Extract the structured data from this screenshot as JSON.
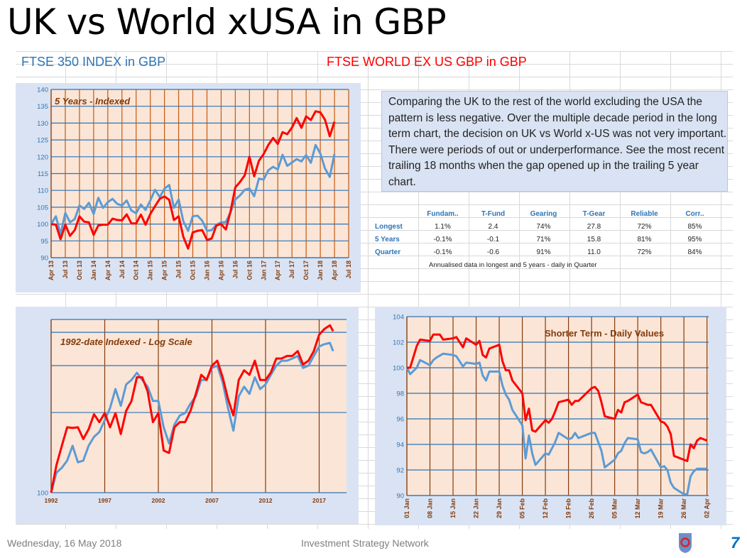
{
  "title": "UK vs World xUSA in GBP",
  "headers": {
    "uk": "FTSE 350 INDEX  in  GBP",
    "world": "FTSE WORLD EX US GBP  in  GBP"
  },
  "note": "Comparing the UK to the rest of the world excluding the USA the pattern is less negative.  Over the multiple decade period in the long term chart, the decision on UK vs World x-US was not very important.  There were periods of out or underperformance.  See the most recent trailing 18 months when the gap opened up in the trailing 5 year chart.",
  "table": {
    "columns": [
      "Fundam..",
      "T-Fund",
      "Gearing",
      "T-Gear",
      "Reliable",
      "Corr.."
    ],
    "rows": [
      {
        "label": "Longest",
        "values": [
          "1.1%",
          "2.4",
          "74%",
          "27.8",
          "72%",
          "85%"
        ]
      },
      {
        "label": "5 Years",
        "values": [
          "-0.1%",
          "-0.1",
          "71%",
          "15.8",
          "81%",
          "95%"
        ]
      },
      {
        "label": "Quarter",
        "values": [
          "-0.1%",
          "-0.6",
          "91%",
          "11.0",
          "72%",
          "84%"
        ]
      }
    ],
    "footnote": "Annualised data in longest and 5 years - daily in Quarter"
  },
  "footer": {
    "date": "Wednesday, 16 May 2018",
    "org": "Investment Strategy Network",
    "page": "7"
  },
  "colors": {
    "uk": "#5b9bd5",
    "world": "#ff0000",
    "plot_bg": "#fbe5d6",
    "panel_bg": "#dae3f3",
    "hgrid": "#2e75b6",
    "vgrid": "#c55a11"
  },
  "chart_data": [
    {
      "type": "line",
      "title": "5 Years - Indexed",
      "x_unit": "months since Apr 2013",
      "ylim": [
        90,
        140
      ],
      "yticks": [
        90,
        95,
        100,
        105,
        110,
        115,
        120,
        125,
        130,
        135,
        140
      ],
      "xtick_labels": [
        "Apr 13",
        "Jul 13",
        "Oct 13",
        "Jan 14",
        "Apr 14",
        "Jul 14",
        "Oct 14",
        "Jan 15",
        "Apr 15",
        "Jul 15",
        "Oct 15",
        "Jan 16",
        "Apr 16",
        "Jul 16",
        "Oct 16",
        "Jan 17",
        "Apr 17",
        "Jul 17",
        "Oct 17",
        "Jan 18",
        "Apr 18",
        "Jul 18"
      ],
      "series": [
        {
          "name": "FTSE 350 INDEX in GBP",
          "color": "#5b9bd5",
          "values": [
            100,
            102.3,
            97,
            103.3,
            100.5,
            101.5,
            105.5,
            104.5,
            106.3,
            103,
            107.8,
            104.8,
            106.5,
            107.5,
            106,
            105.5,
            107,
            104,
            103.2,
            105.8,
            104.2,
            107,
            110.2,
            108,
            110.5,
            111.6,
            104.8,
            107.3,
            100.8,
            98,
            102.3,
            102.5,
            101,
            98,
            98.2,
            99.8,
            100.5,
            100.6,
            103.5,
            107.3,
            108.5,
            110.2,
            110.6,
            108.3,
            113.5,
            113.2,
            116,
            117,
            116.2,
            120.6,
            117.3,
            118.3,
            119.3,
            118.6,
            120.5,
            118.2,
            123.5,
            121,
            116.5,
            114,
            120.8
          ]
        },
        {
          "name": "FTSE WORLD EX US GBP in GBP",
          "color": "#ff0000",
          "values": [
            100,
            99.8,
            95.5,
            99.8,
            96.5,
            98.2,
            102.3,
            100.7,
            100.5,
            96.8,
            99.6,
            99.8,
            99.8,
            101.6,
            101.2,
            101.1,
            102.9,
            100.2,
            100.2,
            102.8,
            99.8,
            103,
            105.3,
            107.5,
            108.2,
            107.2,
            101.2,
            102.3,
            96.2,
            92.7,
            97.5,
            98,
            98.2,
            95.3,
            95.7,
            99.6,
            100,
            98.4,
            103.8,
            110.9,
            112.5,
            114.5,
            120,
            114.2,
            118.8,
            120.8,
            123.5,
            125.6,
            123.8,
            127.3,
            126.7,
            128.7,
            131.5,
            128.6,
            132,
            130.9,
            133.5,
            133.2,
            131,
            126.1,
            130.4
          ]
        }
      ]
    },
    {
      "type": "line",
      "title": "1992-date Indexed - Log Scale",
      "yscale": "log",
      "ylim": [
        100,
        447
      ],
      "ytick_labels": [
        "100"
      ],
      "hgrid_values": [
        200,
        300,
        400
      ],
      "xtick_labels": [
        "1992",
        "1997",
        "2002",
        "2007",
        "2012",
        "2017"
      ],
      "xlim": [
        1992,
        2019.55
      ],
      "x": [
        1992,
        1992.5,
        1993,
        1993.5,
        1994,
        1994.5,
        1995,
        1995.5,
        1996,
        1996.5,
        1997,
        1997.5,
        1998,
        1998.5,
        1999,
        1999.5,
        2000,
        2000.5,
        2001,
        2001.5,
        2002,
        2002.5,
        2003,
        2003.5,
        2004,
        2004.5,
        2005,
        2005.5,
        2006,
        2006.5,
        2007,
        2007.5,
        2008,
        2008.5,
        2009,
        2009.5,
        2010,
        2010.5,
        2011,
        2011.5,
        2012,
        2012.5,
        2013,
        2013.5,
        2014,
        2014.5,
        2015,
        2015.5,
        2016,
        2016.5,
        2017,
        2017.5,
        2018,
        2018.3
      ],
      "series": [
        {
          "name": "FTSE 350 INDEX in GBP",
          "color": "#5b9bd5",
          "values": [
            100,
            119,
            124,
            132,
            150,
            130,
            132,
            150,
            162,
            169,
            187,
            208,
            245,
            212,
            255,
            265,
            282,
            265,
            250,
            221,
            221,
            176,
            153,
            180,
            195,
            199,
            216,
            230,
            265,
            265,
            294,
            300,
            260,
            208,
            171,
            230,
            250,
            235,
            271,
            245,
            255,
            277,
            300,
            313,
            313,
            319,
            326,
            294,
            300,
            326,
            354,
            361,
            365,
            340
          ]
        },
        {
          "name": "FTSE WORLD EX US GBP in GBP",
          "color": "#ff0000",
          "values": [
            100,
            127,
            150,
            176,
            175,
            176,
            159,
            173,
            197,
            184,
            199,
            176,
            199,
            166,
            203,
            221,
            271,
            271,
            240,
            184,
            199,
            144,
            141,
            176,
            184,
            184,
            203,
            235,
            277,
            265,
            300,
            313,
            271,
            225,
            195,
            265,
            288,
            277,
            313,
            265,
            265,
            283,
            319,
            319,
            326,
            326,
            340,
            303,
            313,
            340,
            392,
            412,
            425,
            404
          ]
        }
      ]
    },
    {
      "type": "line",
      "title": "Shorter Term - Daily Values",
      "x_unit": "days since 01 Jan 2018",
      "ylim": [
        90,
        104
      ],
      "yticks": [
        90,
        92,
        94,
        96,
        98,
        100,
        102,
        104
      ],
      "xtick_labels": [
        "01 Jan",
        "08 Jan",
        "15 Jan",
        "22 Jan",
        "29 Jan",
        "05 Feb",
        "12 Feb",
        "19 Feb",
        "26 Feb",
        "05 Mar",
        "12 Mar",
        "19 Mar",
        "26 Mar",
        "02 Apr"
      ],
      "series": [
        {
          "name": "FTSE 350 INDEX in GBP",
          "color": "#5b9bd5",
          "points": [
            [
              0,
              100
            ],
            [
              1,
              99.5
            ],
            [
              3,
              100
            ],
            [
              4,
              100.6
            ],
            [
              7,
              100.2
            ],
            [
              8,
              100.6
            ],
            [
              9,
              100.8
            ],
            [
              11,
              101.1
            ],
            [
              14,
              101
            ],
            [
              15,
              100.9
            ],
            [
              17,
              100.1
            ],
            [
              18,
              100.4
            ],
            [
              21,
              100.3
            ],
            [
              22,
              100.4
            ],
            [
              23,
              99.4
            ],
            [
              24,
              99
            ],
            [
              25,
              99.7
            ],
            [
              28,
              99.7
            ],
            [
              29,
              98.6
            ],
            [
              30,
              97.9
            ],
            [
              31,
              97.5
            ],
            [
              32,
              96.7
            ],
            [
              35,
              95.5
            ],
            [
              36,
              92.9
            ],
            [
              37,
              94.7
            ],
            [
              38,
              93.3
            ],
            [
              39,
              92.4
            ],
            [
              42,
              93.3
            ],
            [
              43,
              93.2
            ],
            [
              44,
              93.7
            ],
            [
              45,
              94.2
            ],
            [
              46,
              94.9
            ],
            [
              49,
              94.4
            ],
            [
              50,
              94.5
            ],
            [
              51,
              94.9
            ],
            [
              52,
              94.5
            ],
            [
              56,
              94.9
            ],
            [
              57,
              94.9
            ],
            [
              58,
              94.2
            ],
            [
              59,
              93.5
            ],
            [
              60,
              92.2
            ],
            [
              63,
              92.8
            ],
            [
              64,
              93.3
            ],
            [
              65,
              93.5
            ],
            [
              66,
              94.1
            ],
            [
              67,
              94.5
            ],
            [
              70,
              94.4
            ],
            [
              71,
              93.4
            ],
            [
              72,
              93.3
            ],
            [
              73,
              93.4
            ],
            [
              74,
              93.6
            ],
            [
              77,
              92.2
            ],
            [
              78,
              92.3
            ],
            [
              79,
              92
            ],
            [
              80,
              91
            ],
            [
              81,
              90.6
            ],
            [
              84,
              90.1
            ],
            [
              85,
              90.1
            ],
            [
              86,
              91.5
            ],
            [
              87,
              91.9
            ],
            [
              88,
              92.1
            ],
            [
              91,
              92.1
            ]
          ]
        },
        {
          "name": "FTSE WORLD EX US GBP in GBP",
          "color": "#ff0000",
          "points": [
            [
              0,
              100
            ],
            [
              1,
              100
            ],
            [
              3,
              101.7
            ],
            [
              4,
              102.2
            ],
            [
              7,
              102.1
            ],
            [
              8,
              102.6
            ],
            [
              10,
              102.6
            ],
            [
              11,
              102.2
            ],
            [
              14,
              102.3
            ],
            [
              15,
              102.4
            ],
            [
              17,
              101.6
            ],
            [
              18,
              102.3
            ],
            [
              21,
              101.8
            ],
            [
              22,
              102.1
            ],
            [
              23,
              101
            ],
            [
              24,
              100.8
            ],
            [
              25,
              101.5
            ],
            [
              28,
              101.8
            ],
            [
              29,
              100.5
            ],
            [
              30,
              99.8
            ],
            [
              31,
              99.8
            ],
            [
              32,
              99
            ],
            [
              35,
              98
            ],
            [
              36,
              95.9
            ],
            [
              37,
              96.8
            ],
            [
              38,
              95.1
            ],
            [
              39,
              95
            ],
            [
              42,
              95.9
            ],
            [
              43,
              95.7
            ],
            [
              44,
              96
            ],
            [
              45,
              96.6
            ],
            [
              46,
              97.3
            ],
            [
              49,
              97.5
            ],
            [
              50,
              97.1
            ],
            [
              51,
              97.4
            ],
            [
              52,
              97.4
            ],
            [
              56,
              98.4
            ],
            [
              57,
              98.5
            ],
            [
              58,
              98.2
            ],
            [
              59,
              97.3
            ],
            [
              60,
              96.2
            ],
            [
              63,
              96
            ],
            [
              64,
              96.7
            ],
            [
              65,
              96.5
            ],
            [
              66,
              97.3
            ],
            [
              67,
              97.4
            ],
            [
              70,
              97.9
            ],
            [
              71,
              97.3
            ],
            [
              72,
              97.2
            ],
            [
              73,
              97.1
            ],
            [
              74,
              97.1
            ],
            [
              77,
              95.8
            ],
            [
              78,
              95.7
            ],
            [
              79,
              95.4
            ],
            [
              80,
              94.8
            ],
            [
              81,
              93.1
            ],
            [
              84,
              92.8
            ],
            [
              85,
              92.7
            ],
            [
              86,
              94
            ],
            [
              87,
              93.7
            ],
            [
              88,
              94.3
            ],
            [
              89,
              94.5
            ],
            [
              91,
              94.3
            ]
          ]
        }
      ]
    }
  ]
}
